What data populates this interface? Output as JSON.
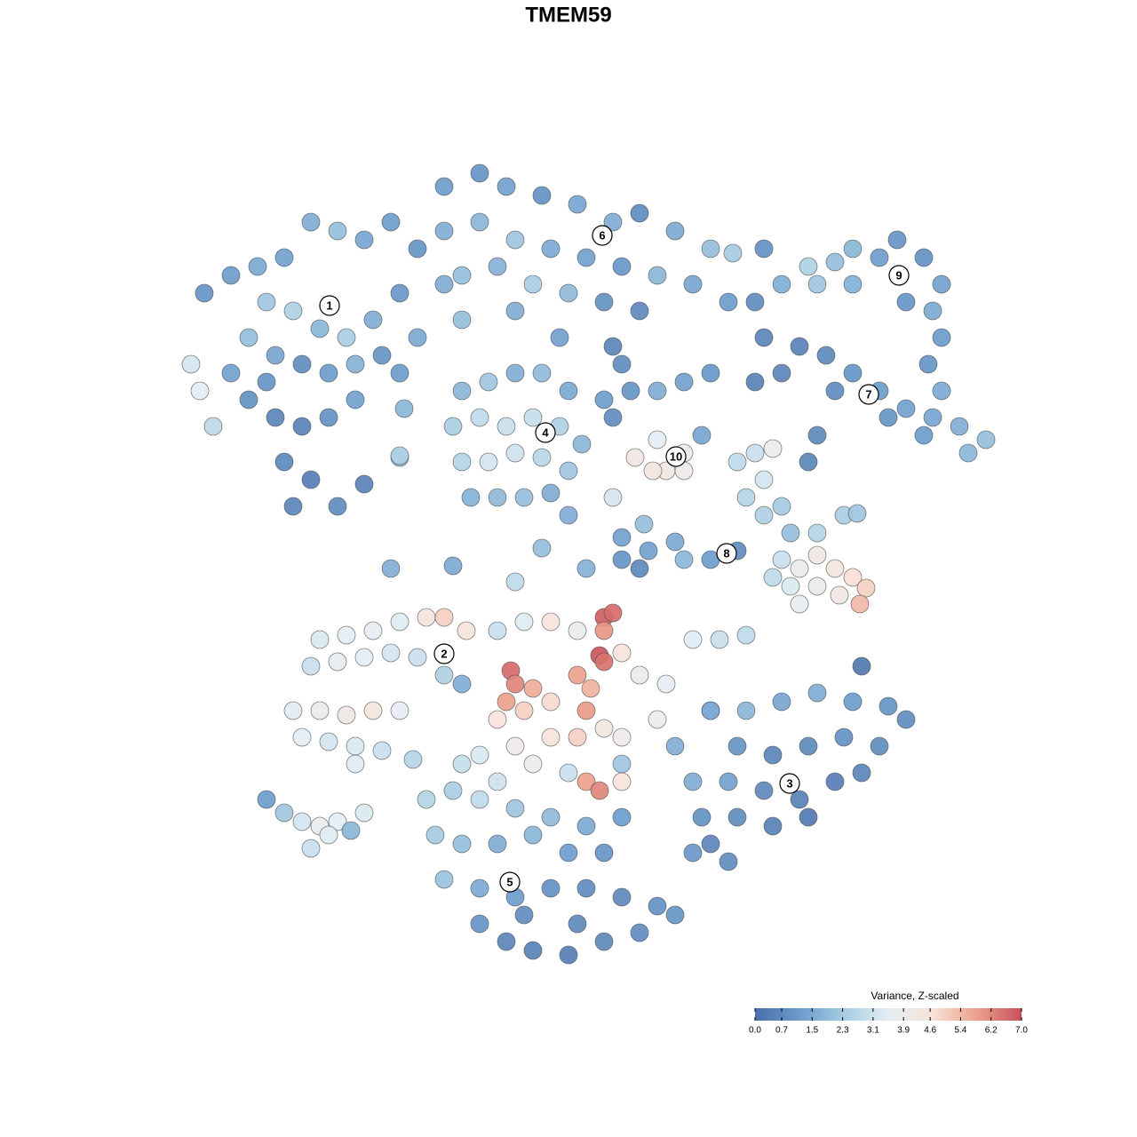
{
  "chart_data": {
    "type": "scatter",
    "title": "TMEM59",
    "colorbar_title": "Variance, Z-scaled",
    "xlim": [
      0,
      1280
    ],
    "ylim": [
      1280,
      0
    ],
    "colorlim": [
      0,
      7
    ],
    "colorscale": [
      "#4c6fa9",
      "#6b9bcb",
      "#a6cce3",
      "#e4eef4",
      "#f8e2d8",
      "#eba08a",
      "#c9505a"
    ],
    "colorticks": [
      {
        "value": 0,
        "label": "0.0"
      },
      0.7,
      1.5,
      2.3,
      3.1,
      3.9,
      4.6,
      5.4,
      6.2,
      {
        "value": 7,
        "label": "7.0"
      }
    ],
    "x": [
      230,
      260,
      290,
      320,
      350,
      380,
      410,
      440,
      470,
      300,
      330,
      360,
      390,
      420,
      450,
      280,
      310,
      340,
      370,
      400,
      430,
      215,
      225,
      240,
      280,
      310,
      340,
      370,
      400,
      320,
      350,
      330,
      380,
      410,
      300,
      260,
      450,
      470,
      500,
      520,
      450,
      500,
      540,
      570,
      610,
      650,
      690,
      720,
      760,
      800,
      825,
      500,
      540,
      580,
      620,
      660,
      700,
      740,
      780,
      520,
      560,
      600,
      640,
      680,
      720,
      690,
      700,
      580,
      630,
      820,
      850,
      880,
      910,
      940,
      960,
      990,
      1010,
      1040,
      1060,
      1050,
      1060,
      1020,
      960,
      920,
      860,
      860,
      900,
      930,
      960,
      990,
      1020,
      1050,
      1080,
      1110,
      1090,
      1040,
      1000,
      940,
      880,
      850,
      1060,
      1045,
      520,
      550,
      580,
      610,
      640,
      510,
      540,
      570,
      600,
      630,
      655,
      520,
      550,
      580,
      610,
      640,
      530,
      560,
      590,
      620,
      680,
      710,
      740,
      770,
      800,
      690,
      740,
      770,
      750,
      735,
      770,
      715,
      790,
      830,
      850,
      870,
      860,
      840,
      860,
      880,
      910,
      920,
      890,
      920,
      950,
      965,
      880,
      900,
      920,
      940,
      960,
      975,
      968,
      945,
      920,
      900,
      890,
      870,
      700,
      730,
      770,
      800,
      830,
      760,
      720,
      360,
      390,
      420,
      450,
      480,
      500,
      525,
      350,
      380,
      410,
      440,
      470,
      500,
      520,
      330,
      360,
      390,
      420,
      450,
      340,
      370,
      400,
      430,
      465,
      400,
      560,
      590,
      620,
      650,
      680,
      690,
      680,
      575,
      580,
      570,
      600,
      590,
      560,
      620,
      650,
      665,
      660,
      675,
      680,
      700,
      720,
      750,
      780,
      810,
      840,
      620,
      650,
      680,
      700,
      740,
      580,
      600,
      640,
      660,
      675,
      700,
      540,
      560,
      520,
      700,
      760,
      800,
      800,
      840,
      880,
      920,
      960,
      1000,
      1020,
      830,
      870,
      910,
      950,
      990,
      780,
      820,
      860,
      900,
      940,
      970,
      790,
      830,
      870,
      910,
      800,
      820,
      780,
      970,
      480,
      510,
      540,
      580,
      620,
      660,
      700,
      490,
      520,
      560,
      600,
      640,
      680,
      500,
      540,
      580,
      620,
      660,
      700,
      740,
      540,
      570,
      600,
      640,
      680,
      720,
      760,
      590,
      650,
      300,
      320,
      340,
      360,
      380,
      350,
      370,
      410,
      395,
      440,
      510,
      580,
      610,
      660,
      700,
      640,
      690,
      725,
      455,
      450
    ],
    "y": [
      330,
      310,
      300,
      290,
      250,
      260,
      270,
      250,
      280,
      340,
      350,
      370,
      380,
      360,
      330,
      380,
      400,
      410,
      420,
      410,
      400,
      410,
      440,
      480,
      450,
      470,
      480,
      470,
      450,
      520,
      540,
      570,
      570,
      545,
      430,
      420,
      420,
      380,
      320,
      360,
      515,
      210,
      195,
      210,
      220,
      230,
      250,
      240,
      260,
      280,
      285,
      260,
      250,
      270,
      280,
      290,
      300,
      310,
      320,
      310,
      300,
      320,
      330,
      340,
      350,
      390,
      410,
      350,
      380,
      340,
      340,
      320,
      300,
      295,
      280,
      290,
      270,
      290,
      320,
      350,
      380,
      340,
      320,
      320,
      280,
      380,
      390,
      400,
      420,
      440,
      460,
      470,
      480,
      495,
      510,
      490,
      470,
      440,
      420,
      430,
      440,
      410,
      440,
      430,
      420,
      420,
      440,
      480,
      470,
      480,
      470,
      480,
      500,
      520,
      520,
      510,
      515,
      530,
      560,
      560,
      560,
      555,
      450,
      440,
      440,
      430,
      420,
      470,
      495,
      510,
      530,
      530,
      530,
      515,
      490,
      520,
      510,
      505,
      540,
      560,
      580,
      570,
      520,
      490,
      600,
      600,
      580,
      578,
      630,
      640,
      625,
      640,
      650,
      662,
      680,
      670,
      660,
      680,
      660,
      650,
      630,
      620,
      630,
      630,
      620,
      610,
      640,
      720,
      715,
      710,
      700,
      695,
      695,
      710,
      750,
      745,
      740,
      735,
      740,
      760,
      770,
      800,
      800,
      805,
      800,
      800,
      830,
      835,
      840,
      845,
      855,
      860,
      710,
      700,
      700,
      710,
      695,
      690,
      710,
      755,
      770,
      790,
      775,
      800,
      810,
      790,
      760,
      775,
      800,
      738,
      745,
      735,
      760,
      770,
      720,
      720,
      715,
      830,
      830,
      820,
      830,
      810,
      840,
      860,
      870,
      880,
      890,
      880,
      850,
      880,
      860,
      860,
      840,
      800,
      800,
      800,
      790,
      780,
      790,
      795,
      810,
      840,
      850,
      840,
      830,
      840,
      880,
      880,
      890,
      900,
      880,
      870,
      920,
      920,
      930,
      920,
      950,
      970,
      960,
      750,
      900,
      890,
      900,
      910,
      920,
      930,
      920,
      940,
      950,
      950,
      940,
      960,
      960,
      990,
      1000,
      1010,
      1000,
      1000,
      1010,
      1020,
      1040,
      1060,
      1070,
      1075,
      1060,
      1050,
      1030,
      1030,
      1040,
      900,
      915,
      925,
      930,
      925,
      955,
      940,
      915,
      935,
      640,
      637,
      655,
      617,
      640,
      605,
      580,
      560,
      590,
      460,
      513
    ],
    "values": [
      1.0,
      1.2,
      1.5,
      1.3,
      1.6,
      2.0,
      1.4,
      1.2,
      1.0,
      2.2,
      2.5,
      1.8,
      2.4,
      1.6,
      1.1,
      2.0,
      1.4,
      0.8,
      1.2,
      1.7,
      1.0,
      3.2,
      3.5,
      2.8,
      0.9,
      0.6,
      0.5,
      0.9,
      1.3,
      0.7,
      0.4,
      0.6,
      0.8,
      0.5,
      1.0,
      1.3,
      1.2,
      1.5,
      1.6,
      2.0,
      2.0,
      1.2,
      1.0,
      1.3,
      0.9,
      1.4,
      1.6,
      0.8,
      1.5,
      2.0,
      2.3,
      1.6,
      1.8,
      2.2,
      1.5,
      1.3,
      1.1,
      1.8,
      1.4,
      2.0,
      1.7,
      2.4,
      1.9,
      0.9,
      0.7,
      0.6,
      0.8,
      1.6,
      1.3,
      1.2,
      0.8,
      1.6,
      2.5,
      2.0,
      1.8,
      1.2,
      1.0,
      0.9,
      1.3,
      1.5,
      1.2,
      1.0,
      1.7,
      2.2,
      0.9,
      0.6,
      0.5,
      0.7,
      1.0,
      1.2,
      1.3,
      1.4,
      1.6,
      2.0,
      1.8,
      1.2,
      1.0,
      0.8,
      0.6,
      0.5,
      1.5,
      1.0,
      1.8,
      2.2,
      1.6,
      1.9,
      1.5,
      2.4,
      2.8,
      3.0,
      2.9,
      2.5,
      1.8,
      2.6,
      3.2,
      3.1,
      2.7,
      2.2,
      1.7,
      1.9,
      2.0,
      1.6,
      1.2,
      1.0,
      1.6,
      1.3,
      1.1,
      0.8,
      3.5,
      3.9,
      4.2,
      4.4,
      4.0,
      4.3,
      1.4,
      2.8,
      3.0,
      3.8,
      3.2,
      2.6,
      2.5,
      2.3,
      0.6,
      0.7,
      2.0,
      2.6,
      2.4,
      2.2,
      3.0,
      3.8,
      4.2,
      4.4,
      4.7,
      5.0,
      5.4,
      4.2,
      3.9,
      3.6,
      3.3,
      2.8,
      1.0,
      1.3,
      1.8,
      1.2,
      0.8,
      1.5,
      0.7,
      3.3,
      3.5,
      3.6,
      3.4,
      4.5,
      5.0,
      4.6,
      3.0,
      3.7,
      3.5,
      3.2,
      3.0,
      2.5,
      1.6,
      3.4,
      3.8,
      4.2,
      4.4,
      3.6,
      3.5,
      3.2,
      3.3,
      3.0,
      2.6,
      3.4,
      3.0,
      3.4,
      4.5,
      3.8,
      6.8,
      6.6,
      6.0,
      6.6,
      6.2,
      5.8,
      5.6,
      5.0,
      4.6,
      4.8,
      5.8,
      5.5,
      5.9,
      6.9,
      6.5,
      4.6,
      3.8,
      3.6,
      3.4,
      3.0,
      2.8,
      4.6,
      5.0,
      4.3,
      4.0,
      3.8,
      4.0,
      3.8,
      3.0,
      5.8,
      6.2,
      4.6,
      3.3,
      3.1,
      2.9,
      2.2,
      1.6,
      2.0,
      1.5,
      1.8,
      1.4,
      1.6,
      1.2,
      1.0,
      0.8,
      1.0,
      0.6,
      0.7,
      0.9,
      0.8,
      1.6,
      1.3,
      0.7,
      0.5,
      0.4,
      0.6,
      0.9,
      0.8,
      0.5,
      0.3,
      0.6,
      0.8,
      1.1,
      0.2,
      2.6,
      2.4,
      2.8,
      2.2,
      1.9,
      1.5,
      1.2,
      2.3,
      2.0,
      1.6,
      1.8,
      1.2,
      1.0,
      2.1,
      1.5,
      1.2,
      0.9,
      0.8,
      0.7,
      0.9,
      1.0,
      0.6,
      0.5,
      0.4,
      0.7,
      0.8,
      1.0,
      0.8,
      0.7,
      1.2,
      2.2,
      3.2,
      3.8,
      3.5,
      3.0,
      3.4,
      3.3,
      1.8,
      1.6,
      1.5,
      2.8,
      2.0,
      1.7,
      1.3,
      1.6,
      3.2,
      2.0,
      1.8,
      2.5
    ],
    "annotations": [
      {
        "text": "1",
        "x": 371,
        "y": 344
      },
      {
        "text": "2",
        "x": 500,
        "y": 736
      },
      {
        "text": "3",
        "x": 889,
        "y": 882
      },
      {
        "text": "4",
        "x": 614,
        "y": 487
      },
      {
        "text": "5",
        "x": 574,
        "y": 993
      },
      {
        "text": "6",
        "x": 678,
        "y": 265
      },
      {
        "text": "7",
        "x": 978,
        "y": 444
      },
      {
        "text": "8",
        "x": 818,
        "y": 623
      },
      {
        "text": "9",
        "x": 1012,
        "y": 310
      },
      {
        "text": "10",
        "x": 761,
        "y": 514
      }
    ]
  }
}
